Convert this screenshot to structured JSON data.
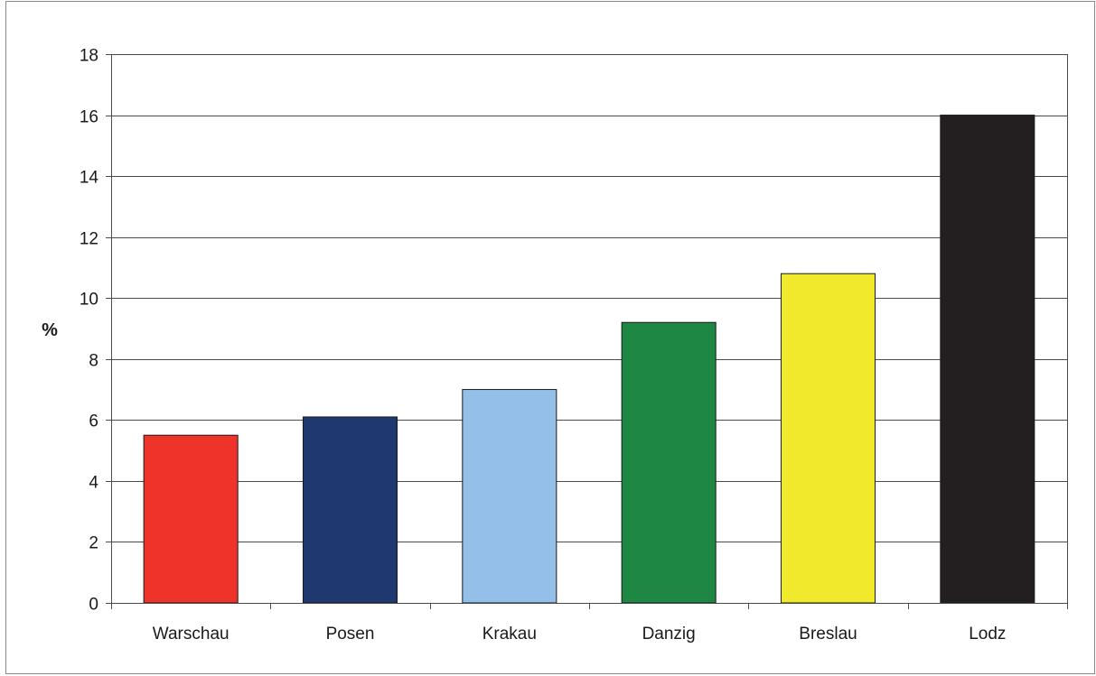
{
  "chart_data": {
    "type": "bar",
    "title": "",
    "xlabel": "",
    "ylabel": "%",
    "categories": [
      "Warschau",
      "Posen",
      "Krakau",
      "Danzig",
      "Breslau",
      "Lodz"
    ],
    "values": [
      5.5,
      6.1,
      7.0,
      9.2,
      10.8,
      16.0
    ],
    "colors": [
      "#ee332b",
      "#203870",
      "#93bfe8",
      "#1e8744",
      "#f1ea2c",
      "#231f20"
    ],
    "ylim": [
      0,
      18
    ],
    "yticks": [
      0,
      2,
      4,
      6,
      8,
      10,
      12,
      14,
      16,
      18
    ],
    "grid": true,
    "legend": "none"
  }
}
